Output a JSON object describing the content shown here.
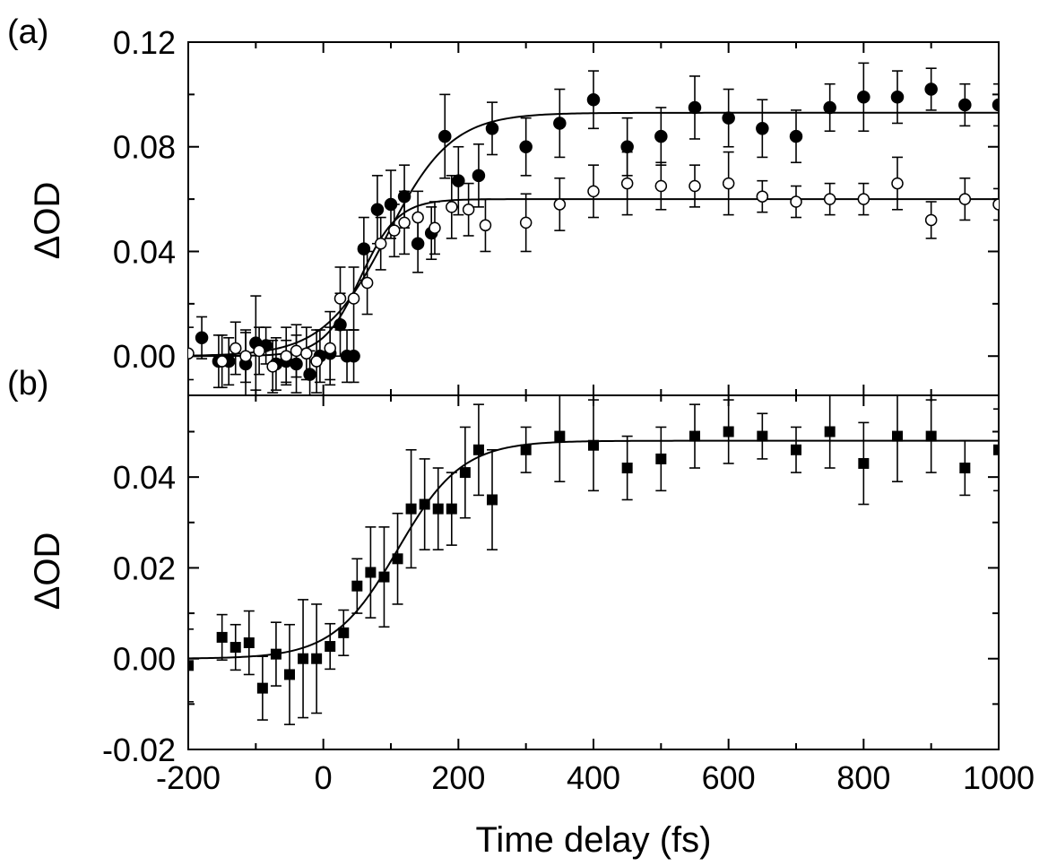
{
  "chart_data": [
    {
      "type": "scatter",
      "panel_label": "(a)",
      "xlabel": "Time delay (fs)",
      "ylabel": "ΔOD",
      "xlim": [
        -200,
        1000
      ],
      "ylim": [
        -0.015,
        0.12
      ],
      "x_ticks": [
        -200,
        0,
        200,
        400,
        600,
        800,
        1000
      ],
      "y_ticks": [
        0.0,
        0.04,
        0.08,
        0.12
      ],
      "y_tick_labels": [
        "0.00",
        "0.04",
        "0.08",
        "0.12"
      ],
      "grid": false,
      "series": [
        {
          "marker": "filled-circle",
          "x": [
            -180,
            -155,
            -140,
            -115,
            -100,
            -85,
            -70,
            -55,
            -40,
            -20,
            -5,
            10,
            25,
            35,
            45,
            60,
            80,
            100,
            120,
            140,
            160,
            180,
            200,
            230,
            250,
            300,
            350,
            400,
            450,
            500,
            550,
            600,
            650,
            700,
            750,
            800,
            850,
            900,
            950,
            1000
          ],
          "y": [
            0.007,
            -0.002,
            -0.002,
            -0.003,
            0.005,
            0.004,
            -0.003,
            -0.002,
            -0.003,
            -0.007,
            0.0,
            0.001,
            0.012,
            0.0,
            0.0,
            0.041,
            0.056,
            0.058,
            0.061,
            0.043,
            0.047,
            0.084,
            0.067,
            0.069,
            0.087,
            0.08,
            0.089,
            0.098,
            0.08,
            0.084,
            0.095,
            0.091,
            0.087,
            0.084,
            0.095,
            0.099,
            0.099,
            0.102,
            0.096,
            0.096
          ],
          "err": [
            0.008,
            0.01,
            0.009,
            0.012,
            0.018,
            0.007,
            0.01,
            0.008,
            0.011,
            0.009,
            0.01,
            0.01,
            0.012,
            0.01,
            0.01,
            0.012,
            0.013,
            0.013,
            0.012,
            0.011,
            0.01,
            0.016,
            0.013,
            0.012,
            0.01,
            0.011,
            0.013,
            0.011,
            0.011,
            0.011,
            0.012,
            0.011,
            0.011,
            0.01,
            0.009,
            0.013,
            0.01,
            0.008,
            0.008,
            0.008
          ],
          "fit": {
            "baseline": 0.0,
            "amplitude": 0.093,
            "center_fs": 95,
            "width_fs": 95
          }
        },
        {
          "marker": "open-circle",
          "x": [
            -200,
            -150,
            -130,
            -115,
            -95,
            -75,
            -55,
            -40,
            -25,
            -10,
            10,
            25,
            45,
            65,
            85,
            105,
            120,
            140,
            165,
            190,
            215,
            240,
            300,
            350,
            400,
            450,
            500,
            550,
            600,
            650,
            700,
            750,
            800,
            850,
            900,
            950,
            1000
          ],
          "y": [
            0.001,
            -0.002,
            0.003,
            0.0,
            0.002,
            -0.004,
            0.0,
            0.002,
            0.001,
            -0.002,
            0.003,
            0.022,
            0.022,
            0.028,
            0.043,
            0.048,
            0.051,
            0.053,
            0.049,
            0.057,
            0.056,
            0.05,
            0.051,
            0.058,
            0.063,
            0.066,
            0.065,
            0.065,
            0.066,
            0.061,
            0.059,
            0.06,
            0.06,
            0.066,
            0.052,
            0.06,
            0.058
          ],
          "err": [
            0.01,
            0.01,
            0.01,
            0.01,
            0.009,
            0.01,
            0.011,
            0.01,
            0.01,
            0.012,
            0.014,
            0.012,
            0.012,
            0.012,
            0.01,
            0.01,
            0.012,
            0.01,
            0.01,
            0.012,
            0.01,
            0.01,
            0.011,
            0.01,
            0.01,
            0.012,
            0.009,
            0.008,
            0.012,
            0.006,
            0.006,
            0.006,
            0.006,
            0.01,
            0.007,
            0.008,
            0.006
          ],
          "fit": {
            "baseline": 0.0,
            "amplitude": 0.06,
            "center_fs": 55,
            "width_fs": 55
          }
        }
      ]
    },
    {
      "type": "scatter",
      "panel_label": "(b)",
      "xlabel": "Time delay (fs)",
      "ylabel": "ΔOD",
      "xlim": [
        -200,
        1000
      ],
      "ylim": [
        -0.02,
        0.058
      ],
      "x_ticks": [
        -200,
        0,
        200,
        400,
        600,
        800,
        1000
      ],
      "x_tick_labels": [
        "-200",
        "0",
        "200",
        "400",
        "600",
        "800",
        "1000"
      ],
      "y_ticks": [
        -0.02,
        0.0,
        0.02,
        0.04
      ],
      "y_tick_labels": [
        "-0.02",
        "0.00",
        "0.02",
        "0.04"
      ],
      "grid": false,
      "series": [
        {
          "marker": "filled-square",
          "x": [
            -200,
            -150,
            -130,
            -110,
            -90,
            -70,
            -50,
            -30,
            -10,
            10,
            30,
            50,
            70,
            90,
            110,
            130,
            150,
            170,
            190,
            210,
            230,
            250,
            300,
            350,
            400,
            450,
            500,
            550,
            600,
            650,
            700,
            750,
            800,
            850,
            900,
            950,
            1000
          ],
          "y": [
            -0.0015,
            0.0047,
            0.0025,
            0.0035,
            -0.0065,
            0.001,
            -0.0035,
            0.0,
            0.0,
            0.0027,
            0.0057,
            0.016,
            0.019,
            0.018,
            0.022,
            0.033,
            0.034,
            0.033,
            0.033,
            0.041,
            0.046,
            0.035,
            0.046,
            0.049,
            0.047,
            0.042,
            0.044,
            0.049,
            0.05,
            0.049,
            0.046,
            0.05,
            0.043,
            0.049,
            0.049,
            0.042,
            0.046
          ],
          "err": [
            0.008,
            0.005,
            0.005,
            0.007,
            0.007,
            0.007,
            0.011,
            0.013,
            0.012,
            0.005,
            0.005,
            0.006,
            0.01,
            0.011,
            0.01,
            0.013,
            0.01,
            0.009,
            0.008,
            0.01,
            0.01,
            0.011,
            0.005,
            0.01,
            0.01,
            0.007,
            0.007,
            0.007,
            0.007,
            0.005,
            0.005,
            0.008,
            0.009,
            0.01,
            0.008,
            0.006,
            0.009
          ],
          "fit": {
            "baseline": 0.0,
            "amplitude": 0.048,
            "center_fs": 110,
            "width_fs": 95
          }
        }
      ]
    }
  ]
}
